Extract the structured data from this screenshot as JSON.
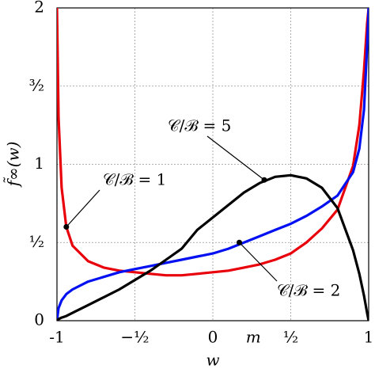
{
  "chart_data": {
    "type": "line",
    "xlabel": "w",
    "ylabel": "f̃∞(w)",
    "xlim": [
      -1,
      1
    ],
    "ylim": [
      0,
      2
    ],
    "xticks": [
      -1,
      {
        "value": -0.5,
        "label": "−½"
      },
      0,
      {
        "value": 0.5,
        "label": "½"
      },
      1
    ],
    "yticks": [
      0,
      {
        "value": 0.5,
        "label": "½"
      },
      1,
      {
        "value": 1.5,
        "label": "³⁄₂"
      },
      2
    ],
    "grid": true,
    "x": [
      -1,
      -0.99,
      -0.97,
      -0.94,
      -0.9,
      -0.8,
      -0.7,
      -0.6,
      -0.5,
      -0.4,
      -0.3,
      -0.2,
      -0.1,
      0,
      0.1,
      0.2,
      0.3,
      0.4,
      0.5,
      0.6,
      0.7,
      0.8,
      0.9,
      0.94,
      0.97,
      0.99,
      1
    ],
    "series": [
      {
        "color": "#e8000b",
        "values": [
          2,
          1.3,
          0.85,
          0.6,
          0.48,
          0.38,
          0.34,
          0.32,
          0.31,
          0.3,
          0.29,
          0.29,
          0.3,
          0.31,
          0.32,
          0.34,
          0.36,
          0.39,
          0.43,
          0.5,
          0.59,
          0.71,
          0.99,
          1.25,
          1.6,
          1.9,
          2
        ]
      },
      {
        "color": "#0010f0",
        "values": [
          0,
          0.08,
          0.13,
          0.17,
          0.2,
          0.25,
          0.28,
          0.31,
          0.33,
          0.35,
          0.37,
          0.39,
          0.41,
          0.43,
          0.46,
          0.5,
          0.54,
          0.58,
          0.62,
          0.67,
          0.73,
          0.8,
          0.95,
          1.1,
          1.35,
          1.75,
          2
        ]
      },
      {
        "color": "#000000",
        "values": [
          0,
          0.01,
          0.02,
          0.03,
          0.05,
          0.1,
          0.15,
          0.2,
          0.26,
          0.32,
          0.39,
          0.46,
          0.58,
          0.66,
          0.74,
          0.82,
          0.88,
          0.92,
          0.93,
          0.91,
          0.85,
          0.72,
          0.45,
          0.3,
          0.16,
          0.05,
          0
        ]
      }
    ],
    "annotations": [
      {
        "text": "𝒞/ℬ = 1",
        "target": [
          -0.94,
          0.6
        ]
      },
      {
        "text": "𝒞/ℬ = 5",
        "target": [
          0.33,
          0.9
        ]
      },
      {
        "text": "𝒞/ℬ = 2",
        "target": [
          0.17,
          0.5
        ]
      }
    ],
    "marker_label": {
      "text": "m",
      "x": 0.26
    }
  }
}
